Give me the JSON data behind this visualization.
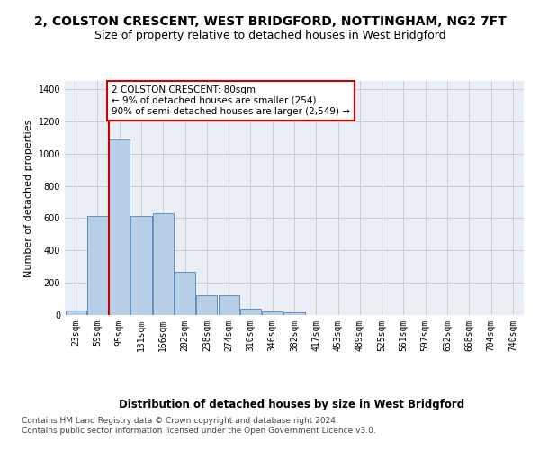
{
  "title": "2, COLSTON CRESCENT, WEST BRIDGFORD, NOTTINGHAM, NG2 7FT",
  "subtitle": "Size of property relative to detached houses in West Bridgford",
  "xlabel": "Distribution of detached houses by size in West Bridgford",
  "ylabel": "Number of detached properties",
  "footer_line1": "Contains HM Land Registry data © Crown copyright and database right 2024.",
  "footer_line2": "Contains public sector information licensed under the Open Government Licence v3.0.",
  "bar_values": [
    30,
    615,
    1085,
    615,
    630,
    270,
    120,
    120,
    40,
    22,
    15,
    0,
    0,
    0,
    0,
    0,
    0,
    0,
    0,
    0,
    0
  ],
  "bar_labels": [
    "23sqm",
    "59sqm",
    "95sqm",
    "131sqm",
    "166sqm",
    "202sqm",
    "238sqm",
    "274sqm",
    "310sqm",
    "346sqm",
    "382sqm",
    "417sqm",
    "453sqm",
    "489sqm",
    "525sqm",
    "561sqm",
    "597sqm",
    "632sqm",
    "668sqm",
    "704sqm",
    "740sqm"
  ],
  "bar_color": "#b8cfe8",
  "bar_edge_color": "#6090c0",
  "vline_color": "#cc0000",
  "annotation_box_text": "2 COLSTON CRESCENT: 80sqm\n← 9% of detached houses are smaller (254)\n90% of semi-detached houses are larger (2,549) →",
  "annotation_box_color": "#cc0000",
  "annotation_box_fill": "#ffffff",
  "ylim": [
    0,
    1450
  ],
  "yticks": [
    0,
    200,
    400,
    600,
    800,
    1000,
    1200,
    1400
  ],
  "grid_color": "#cccccc",
  "bg_color": "#eaeef5",
  "fig_bg_color": "#ffffff",
  "title_fontsize": 10,
  "subtitle_fontsize": 9,
  "xlabel_fontsize": 8.5,
  "ylabel_fontsize": 8,
  "tick_fontsize": 7,
  "footer_fontsize": 6.5
}
